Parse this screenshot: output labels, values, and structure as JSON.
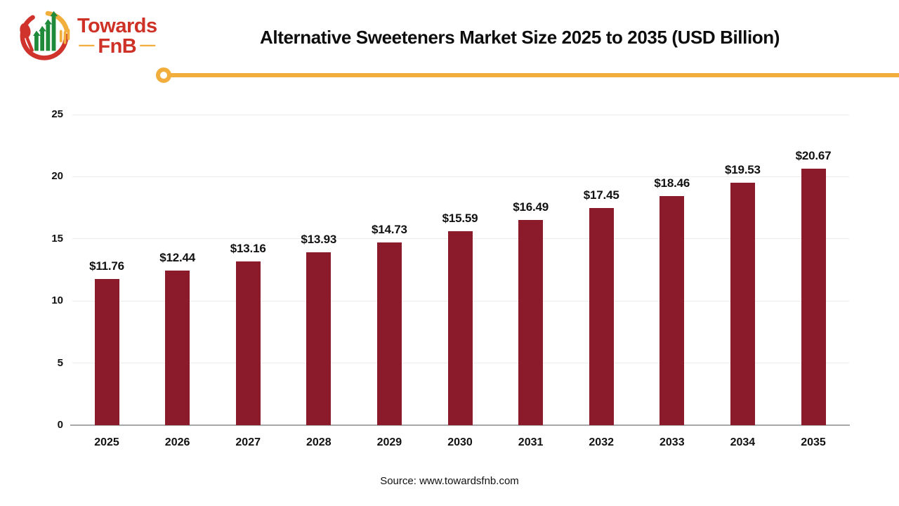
{
  "logo": {
    "brand_top": "Towards",
    "brand_bottom": "FnB",
    "dash_left": "—",
    "dash_right": "—"
  },
  "header": {
    "title": "Alternative Sweeteners Market Size 2025 to 2035 (USD Billion)"
  },
  "chart_data": {
    "type": "bar",
    "title": "Alternative Sweeteners Market Size 2025 to 2035 (USD Billion)",
    "categories": [
      "2025",
      "2026",
      "2027",
      "2028",
      "2029",
      "2030",
      "2031",
      "2032",
      "2033",
      "2034",
      "2035"
    ],
    "values": [
      11.76,
      12.44,
      13.16,
      13.93,
      14.73,
      15.59,
      16.49,
      17.45,
      18.46,
      19.53,
      20.67
    ],
    "value_labels": [
      "$11.76",
      "$12.44",
      "$13.16",
      "$13.93",
      "$14.73",
      "$15.59",
      "$16.49",
      "$17.45",
      "$18.46",
      "$19.53",
      "$20.67"
    ],
    "xlabel": "",
    "ylabel": "",
    "y_ticks": [
      0,
      5,
      10,
      15,
      20,
      25
    ],
    "ylim": [
      0,
      25
    ],
    "grid": true,
    "legend_position": "none",
    "bar_color": "#8b1a2b"
  },
  "footer": {
    "source": "Source: www.towardsfnb.com"
  },
  "colors": {
    "bar": "#8b1a2b",
    "accent_yellow": "#f2ae3c",
    "logo_red": "#ce3226",
    "logo_arc_red": "#d0322c",
    "logo_green": "#1e8a3a",
    "gridline": "#ececec",
    "axis_line": "#a8a8a8",
    "text": "#111111"
  }
}
